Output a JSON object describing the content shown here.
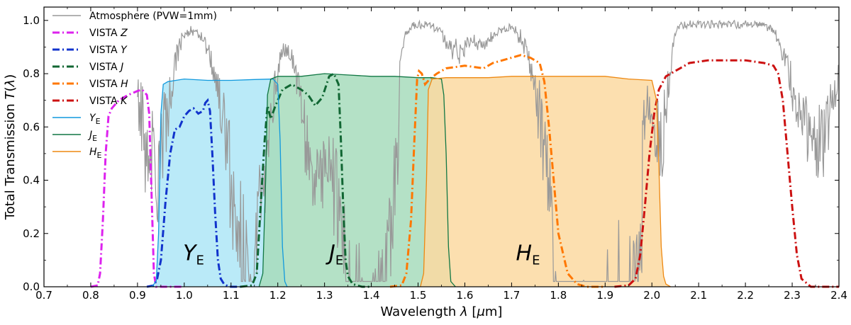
{
  "chart_data": {
    "type": "line",
    "xlabel_pre": "Wavelength ",
    "xlabel_sym": "λ",
    "xlabel_unit_pre": " [",
    "xlabel_mu": "μ",
    "xlabel_unit_post": "m]",
    "ylabel_pre": "Total Transmission ",
    "ylabel_sym": "T",
    "ylabel_paren_open": "(",
    "ylabel_lambda": "λ",
    "ylabel_paren_close": ")",
    "xlim": [
      0.7,
      2.4
    ],
    "ylim": [
      0.0,
      1.05
    ],
    "xticks": [
      "0.7",
      "0.8",
      "0.9",
      "1.0",
      "1.1",
      "1.2",
      "1.3",
      "1.4",
      "1.5",
      "1.6",
      "1.7",
      "1.8",
      "1.9",
      "2.0",
      "2.1",
      "2.2",
      "2.3",
      "2.4"
    ],
    "yticks": [
      "0.0",
      "0.2",
      "0.4",
      "0.6",
      "0.8",
      "1.0"
    ],
    "legend": [
      {
        "label": "Atmosphere (PVW=1mm)",
        "sub": "",
        "italic": false,
        "color": "#999999",
        "style": "solid"
      },
      {
        "label": "VISTA ",
        "sym": "Z",
        "sub": "",
        "color": "#dd22ee",
        "style": "dashdot"
      },
      {
        "label": "VISTA ",
        "sym": "Y",
        "sub": "",
        "color": "#1133cc",
        "style": "dashdot"
      },
      {
        "label": "VISTA ",
        "sym": "J",
        "sub": "",
        "color": "#116633",
        "style": "dashdot"
      },
      {
        "label": "VISTA ",
        "sym": "H",
        "sub": "",
        "color": "#ff7700",
        "style": "dashdot"
      },
      {
        "label": "VISTA ",
        "sym": "K",
        "sub": "",
        "color": "#cc1111",
        "style": "dashdot"
      },
      {
        "label": "",
        "sym": "Y",
        "sub": "E",
        "color": "#1199dd",
        "style": "solid"
      },
      {
        "label": "",
        "sym": "J",
        "sub": "E",
        "color": "#117744",
        "style": "solid"
      },
      {
        "label": "",
        "sym": "H",
        "sub": "E",
        "color": "#ee8811",
        "style": "solid"
      }
    ],
    "band_labels": [
      {
        "sym": "Y",
        "sub": "E",
        "x": 1.02,
        "y": 0.1
      },
      {
        "sym": "J",
        "sub": "E",
        "x": 1.325,
        "y": 0.1
      },
      {
        "sym": "H",
        "sub": "E",
        "x": 1.735,
        "y": 0.1
      }
    ],
    "series": [
      {
        "name": "VISTA Z",
        "color": "#dd22ee",
        "style": "dashdot",
        "x": [
          0.8,
          0.815,
          0.82,
          0.826,
          0.832,
          0.838,
          0.845,
          0.86,
          0.88,
          0.9,
          0.91,
          0.915,
          0.92,
          0.925,
          0.93,
          0.935,
          0.94,
          1.0
        ],
        "y": [
          0.0,
          0.005,
          0.05,
          0.25,
          0.5,
          0.64,
          0.67,
          0.7,
          0.72,
          0.735,
          0.74,
          0.73,
          0.72,
          0.65,
          0.35,
          0.05,
          0.0,
          0.0
        ]
      },
      {
        "name": "VISTA Y",
        "color": "#1133cc",
        "style": "dashdot",
        "x": [
          0.92,
          0.935,
          0.942,
          0.95,
          0.96,
          0.97,
          0.98,
          0.99,
          1.0,
          1.01,
          1.02,
          1.03,
          1.04,
          1.045,
          1.05,
          1.055,
          1.06,
          1.066,
          1.072,
          1.078,
          1.085,
          1.095,
          1.12
        ],
        "y": [
          0.0,
          0.005,
          0.03,
          0.1,
          0.32,
          0.5,
          0.59,
          0.6,
          0.64,
          0.66,
          0.67,
          0.65,
          0.66,
          0.69,
          0.7,
          0.66,
          0.5,
          0.28,
          0.1,
          0.03,
          0.01,
          0.0,
          0.0
        ]
      },
      {
        "name": "VISTA J",
        "color": "#116633",
        "style": "dashdot",
        "x": [
          1.12,
          1.145,
          1.155,
          1.165,
          1.172,
          1.178,
          1.185,
          1.195,
          1.21,
          1.23,
          1.25,
          1.265,
          1.28,
          1.295,
          1.31,
          1.32,
          1.33,
          1.335,
          1.34,
          1.345,
          1.35,
          1.36,
          1.38,
          1.4
        ],
        "y": [
          0.0,
          0.005,
          0.05,
          0.35,
          0.55,
          0.68,
          0.63,
          0.68,
          0.74,
          0.76,
          0.74,
          0.72,
          0.68,
          0.71,
          0.79,
          0.8,
          0.76,
          0.55,
          0.3,
          0.1,
          0.04,
          0.01,
          0.0,
          0.0
        ]
      },
      {
        "name": "VISTA H",
        "color": "#ff7700",
        "style": "dashdot",
        "x": [
          1.44,
          1.465,
          1.475,
          1.485,
          1.492,
          1.498,
          1.502,
          1.508,
          1.515,
          1.525,
          1.54,
          1.56,
          1.6,
          1.64,
          1.66,
          1.7,
          1.72,
          1.74,
          1.76,
          1.77,
          1.78,
          1.79,
          1.8,
          1.82,
          1.84,
          1.86,
          1.9
        ],
        "y": [
          0.0,
          0.005,
          0.05,
          0.25,
          0.55,
          0.78,
          0.81,
          0.8,
          0.76,
          0.78,
          0.8,
          0.82,
          0.83,
          0.82,
          0.84,
          0.86,
          0.87,
          0.86,
          0.84,
          0.77,
          0.6,
          0.4,
          0.2,
          0.05,
          0.01,
          0.0,
          0.0
        ]
      },
      {
        "name": "VISTA K",
        "color": "#cc1111",
        "style": "dashdot",
        "x": [
          1.92,
          1.95,
          1.965,
          1.975,
          1.985,
          1.995,
          2.005,
          2.015,
          2.03,
          2.05,
          2.08,
          2.12,
          2.16,
          2.2,
          2.24,
          2.26,
          2.27,
          2.28,
          2.29,
          2.3,
          2.31,
          2.32,
          2.34,
          2.4
        ],
        "y": [
          0.0,
          0.005,
          0.03,
          0.12,
          0.3,
          0.5,
          0.65,
          0.74,
          0.79,
          0.81,
          0.84,
          0.85,
          0.85,
          0.85,
          0.84,
          0.83,
          0.8,
          0.7,
          0.5,
          0.3,
          0.12,
          0.03,
          0.0,
          0.0
        ]
      },
      {
        "name": "Y_E",
        "color": "#1199dd",
        "fill": "#aee6f7",
        "style": "solid",
        "x": [
          0.93,
          0.94,
          0.945,
          0.95,
          0.955,
          0.965,
          1.0,
          1.05,
          1.1,
          1.15,
          1.19,
          1.2,
          1.205,
          1.21,
          1.215,
          1.22
        ],
        "y": [
          0.0,
          0.02,
          0.2,
          0.65,
          0.76,
          0.77,
          0.78,
          0.775,
          0.775,
          0.778,
          0.78,
          0.76,
          0.55,
          0.15,
          0.02,
          0.0
        ]
      },
      {
        "name": "J_E",
        "color": "#117744",
        "fill": "#a7dcbc",
        "style": "solid",
        "x": [
          1.16,
          1.168,
          1.174,
          1.178,
          1.185,
          1.2,
          1.25,
          1.3,
          1.35,
          1.4,
          1.45,
          1.5,
          1.53,
          1.55,
          1.555,
          1.56,
          1.565,
          1.57,
          1.58
        ],
        "y": [
          0.0,
          0.05,
          0.4,
          0.72,
          0.78,
          0.79,
          0.79,
          0.8,
          0.795,
          0.79,
          0.79,
          0.785,
          0.785,
          0.78,
          0.72,
          0.5,
          0.15,
          0.02,
          0.0
        ]
      },
      {
        "name": "H_E",
        "color": "#ee8811",
        "fill": "#fcd9a1",
        "style": "solid",
        "x": [
          1.505,
          1.512,
          1.518,
          1.522,
          1.53,
          1.56,
          1.6,
          1.65,
          1.7,
          1.75,
          1.8,
          1.85,
          1.9,
          1.95,
          2.0,
          2.01,
          2.015,
          2.02,
          2.025,
          2.03,
          2.04
        ],
        "y": [
          0.0,
          0.05,
          0.4,
          0.74,
          0.78,
          0.785,
          0.785,
          0.785,
          0.79,
          0.79,
          0.79,
          0.79,
          0.79,
          0.78,
          0.775,
          0.7,
          0.45,
          0.15,
          0.04,
          0.01,
          0.0
        ]
      }
    ],
    "atmosphere": {
      "name": "Atmosphere (PVW=1mm)",
      "color": "#999999",
      "x_start": 0.9,
      "x_end": 2.4
    }
  }
}
